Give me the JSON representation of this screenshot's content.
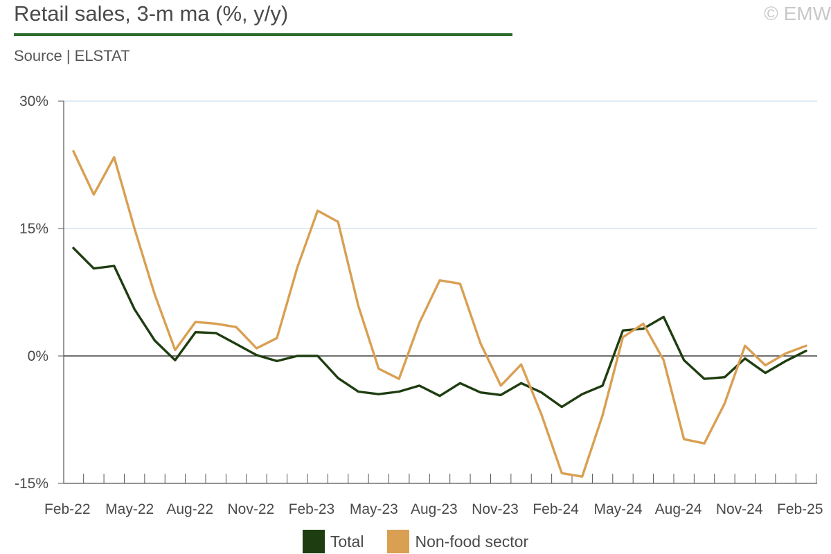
{
  "header": {
    "title": "Retail sales, 3-m ma (%, y/y)",
    "copyright": "© EMW",
    "source": "Source | ELSTAT"
  },
  "chart_data": {
    "type": "line",
    "title": "Retail sales, 3-m ma (%, y/y)",
    "xlabel": "",
    "ylabel": "",
    "ylim": [
      -15,
      30
    ],
    "y_ticks": [
      30,
      15,
      0,
      -15
    ],
    "y_tick_labels": [
      "30%",
      "15%",
      "0%",
      "-15%"
    ],
    "x": [
      "Feb-22",
      "Mar-22",
      "Apr-22",
      "May-22",
      "Jun-22",
      "Jul-22",
      "Aug-22",
      "Sep-22",
      "Oct-22",
      "Nov-22",
      "Dec-22",
      "Jan-23",
      "Feb-23",
      "Mar-23",
      "Apr-23",
      "May-23",
      "Jun-23",
      "Jul-23",
      "Aug-23",
      "Sep-23",
      "Oct-23",
      "Nov-23",
      "Dec-23",
      "Jan-24",
      "Feb-24",
      "Mar-24",
      "Apr-24",
      "May-24",
      "Jun-24",
      "Jul-24",
      "Aug-24",
      "Sep-24",
      "Oct-24",
      "Nov-24",
      "Dec-24",
      "Jan-25",
      "Feb-25"
    ],
    "x_tick_labels": [
      "Feb-22",
      "May-22",
      "Aug-22",
      "Nov-22",
      "Feb-23",
      "May-23",
      "Aug-23",
      "Nov-23",
      "Feb-24",
      "May-24",
      "Aug-24",
      "Nov-24",
      "Feb-25"
    ],
    "grid": true,
    "legend_position": "bottom-center",
    "series": [
      {
        "name": "Total",
        "color": "#1e3d10",
        "values": [
          12.7,
          10.3,
          10.6,
          5.5,
          1.8,
          -0.5,
          2.8,
          2.7,
          1.4,
          0.1,
          -0.6,
          0.0,
          0.0,
          -2.6,
          -4.2,
          -4.5,
          -4.2,
          -3.5,
          -4.7,
          -3.2,
          -4.3,
          -4.6,
          -3.2,
          -4.3,
          -6.0,
          -4.5,
          -3.5,
          3.0,
          3.2,
          4.6,
          -0.5,
          -2.7,
          -2.5,
          -0.3,
          -2.0,
          -0.6,
          0.6
        ]
      },
      {
        "name": "Non-food sector",
        "color": "#d99f52",
        "values": [
          24.1,
          19.0,
          23.4,
          15.0,
          7.2,
          0.7,
          4.0,
          3.8,
          3.4,
          0.9,
          2.1,
          10.4,
          17.1,
          15.8,
          5.9,
          -1.5,
          -2.7,
          3.9,
          8.9,
          8.5,
          1.5,
          -3.5,
          -1.0,
          -6.9,
          -13.8,
          -14.2,
          -7.0,
          2.2,
          3.8,
          -0.5,
          -9.8,
          -10.3,
          -5.6,
          1.2,
          -1.1,
          0.3,
          1.2
        ]
      }
    ]
  }
}
